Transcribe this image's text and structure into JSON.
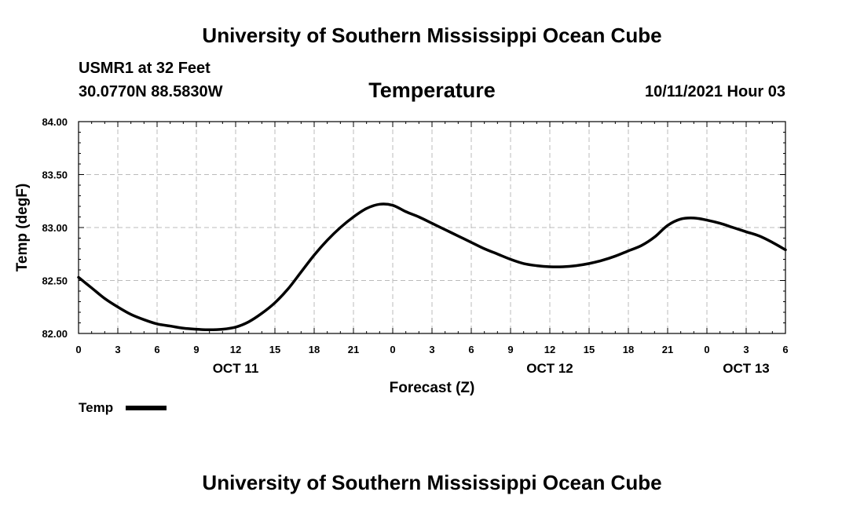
{
  "header": {
    "title_top": "University of Southern Mississippi Ocean Cube",
    "station": "USMR1 at 32 Feet",
    "coords": "30.0770N  88.5830W",
    "parameter": "Temperature",
    "valid_time": "10/11/2021 Hour 03",
    "title_bottom": "University of Southern Mississippi Ocean Cube"
  },
  "chart_data": {
    "type": "line",
    "title": "Temperature",
    "xlabel": "Forecast (Z)",
    "ylabel": "Temp (degF)",
    "xlim": [
      0,
      54
    ],
    "ylim": [
      82.0,
      84.0
    ],
    "grid": true,
    "x_tick_labels": [
      "0",
      "3",
      "6",
      "9",
      "12",
      "15",
      "18",
      "21",
      "0",
      "3",
      "6",
      "9",
      "12",
      "15",
      "18",
      "21",
      "0",
      "3",
      "6"
    ],
    "y_tick_labels": [
      "82.00",
      "82.50",
      "83.00",
      "83.50",
      "84.00"
    ],
    "y_ticks": [
      82.0,
      82.5,
      83.0,
      83.5,
      84.0
    ],
    "date_labels": [
      {
        "label": "OCT 11",
        "hour": 12
      },
      {
        "label": "OCT 12",
        "hour": 36
      },
      {
        "label": "OCT 13",
        "hour": 51
      }
    ],
    "series": [
      {
        "name": "Temp",
        "color": "#000000",
        "x": [
          0,
          1,
          2,
          3,
          4,
          5,
          6,
          7,
          8,
          9,
          10,
          11,
          12,
          13,
          14,
          15,
          16,
          17,
          18,
          19,
          20,
          21,
          22,
          23,
          24,
          25,
          26,
          27,
          28,
          29,
          30,
          31,
          32,
          33,
          34,
          35,
          36,
          37,
          38,
          39,
          40,
          41,
          42,
          43,
          44,
          45,
          46,
          47,
          48,
          49,
          50,
          51,
          52,
          53,
          54
        ],
        "y": [
          82.53,
          82.43,
          82.33,
          82.25,
          82.18,
          82.13,
          82.09,
          82.07,
          82.05,
          82.04,
          82.035,
          82.04,
          82.06,
          82.11,
          82.19,
          82.29,
          82.42,
          82.58,
          82.74,
          82.88,
          83.0,
          83.1,
          83.18,
          83.22,
          83.21,
          83.15,
          83.1,
          83.04,
          82.98,
          82.92,
          82.86,
          82.8,
          82.75,
          82.7,
          82.66,
          82.64,
          82.63,
          82.63,
          82.64,
          82.66,
          82.69,
          82.73,
          82.78,
          82.83,
          82.91,
          83.02,
          83.08,
          83.09,
          83.07,
          83.04,
          83.0,
          82.96,
          82.92,
          82.86,
          82.79
        ]
      }
    ]
  },
  "legend": {
    "label": "Temp"
  }
}
